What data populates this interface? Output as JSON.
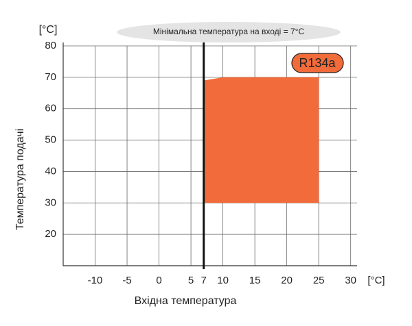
{
  "chart_data": {
    "type": "area",
    "title": "Мінімальна температура на вході = 7°C",
    "xlabel": "Вхідна температура",
    "ylabel": "Температура подачі",
    "x_unit": "[°C]",
    "y_unit": "[°C]",
    "series": [
      {
        "name": "R134a",
        "color": "#f26b3a",
        "x": [
          7,
          7,
          10,
          25,
          25
        ],
        "values": [
          30,
          69,
          70,
          70,
          30
        ]
      }
    ],
    "threshold_x": 7,
    "xlim": [
      -15,
      31
    ],
    "ylim": [
      10,
      80
    ],
    "xticks": [
      -10,
      -5,
      0,
      5,
      7,
      10,
      15,
      20,
      25,
      30
    ],
    "yticks": [
      20,
      30,
      40,
      50,
      60,
      70,
      80
    ],
    "grid": true
  }
}
